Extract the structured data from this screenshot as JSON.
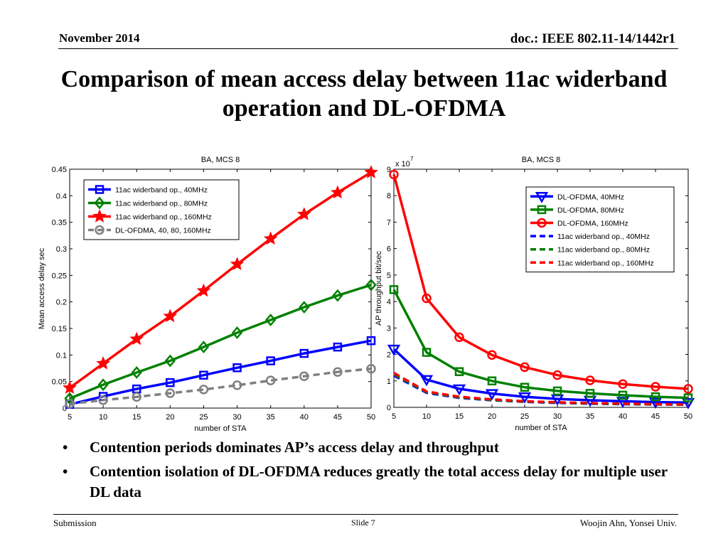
{
  "header": {
    "date": "November 2014",
    "doc": "doc.: IEEE 802.11-14/1442r1"
  },
  "title": "Comparison of mean access delay between 11ac widerband operation and DL-OFDMA",
  "chart_data": [
    {
      "type": "line",
      "title": "BA, MCS 8",
      "xlabel": "number of STA",
      "ylabel": "Mean access delay sec",
      "x": [
        5,
        10,
        15,
        20,
        25,
        30,
        35,
        40,
        45,
        50
      ],
      "xlim": [
        5,
        50
      ],
      "ylim": [
        0,
        0.45
      ],
      "xticks": [
        "5",
        "10",
        "15",
        "20",
        "25",
        "30",
        "35",
        "40",
        "45",
        "50"
      ],
      "yticks": [
        "0",
        "0.05",
        "0.1",
        "0.15",
        "0.2",
        "0.25",
        "0.3",
        "0.35",
        "0.4",
        "0.45"
      ],
      "legend": "top-left",
      "grid": false,
      "series": [
        {
          "name": "11ac widerband op., 40MHz",
          "color": "#0000ff",
          "marker": "square",
          "dash": "solid",
          "values": [
            0.007,
            0.022,
            0.036,
            0.048,
            0.062,
            0.076,
            0.089,
            0.103,
            0.115,
            0.127
          ]
        },
        {
          "name": "11ac widerband op., 80MHz",
          "color": "#008000",
          "marker": "diamond",
          "dash": "solid",
          "values": [
            0.018,
            0.044,
            0.067,
            0.089,
            0.115,
            0.142,
            0.166,
            0.19,
            0.212,
            0.232
          ]
        },
        {
          "name": "11ac widerband op., 160MHz",
          "color": "#ff0000",
          "marker": "star",
          "dash": "solid",
          "values": [
            0.038,
            0.084,
            0.13,
            0.173,
            0.221,
            0.271,
            0.319,
            0.365,
            0.406,
            0.444
          ]
        },
        {
          "name": "DL-OFDMA, 40, 80, 160MHz",
          "color": "#808080",
          "marker": "circle",
          "dash": "dashed",
          "values": [
            0.008,
            0.015,
            0.021,
            0.028,
            0.035,
            0.043,
            0.052,
            0.06,
            0.068,
            0.074
          ]
        }
      ]
    },
    {
      "type": "line",
      "title": "BA, MCS 8",
      "xlabel": "number of STA",
      "ylabel": "AP throughput bit/sec",
      "multiplier": "x 10",
      "multiplier_exp": "7",
      "x": [
        5,
        10,
        15,
        20,
        25,
        30,
        35,
        40,
        45,
        50
      ],
      "xlim": [
        5,
        50
      ],
      "ylim": [
        0,
        9
      ],
      "xticks": [
        "5",
        "10",
        "15",
        "20",
        "25",
        "30",
        "35",
        "40",
        "45",
        "50"
      ],
      "yticks": [
        "0",
        "1",
        "2",
        "3",
        "4",
        "5",
        "6",
        "7",
        "8",
        "9"
      ],
      "legend": "top-right",
      "grid": false,
      "series": [
        {
          "name": "DL-OFDMA, 40MHz",
          "color": "#0000ff",
          "marker": "triangle-down",
          "dash": "solid",
          "values": [
            2.2,
            1.05,
            0.7,
            0.52,
            0.4,
            0.32,
            0.27,
            0.23,
            0.2,
            0.18
          ]
        },
        {
          "name": "DL-OFDMA, 80MHz",
          "color": "#008000",
          "marker": "square",
          "dash": "solid",
          "values": [
            4.45,
            2.08,
            1.35,
            1.0,
            0.76,
            0.62,
            0.53,
            0.46,
            0.4,
            0.36
          ]
        },
        {
          "name": "DL-OFDMA, 160MHz",
          "color": "#ff0000",
          "marker": "circle",
          "dash": "solid",
          "values": [
            8.8,
            4.12,
            2.65,
            1.98,
            1.52,
            1.22,
            1.02,
            0.88,
            0.78,
            0.7
          ]
        },
        {
          "name": "11ac widerband op., 40MHz",
          "color": "#0000ff",
          "marker": "none",
          "dash": "dashed",
          "values": [
            1.2,
            0.55,
            0.36,
            0.27,
            0.21,
            0.17,
            0.14,
            0.12,
            0.11,
            0.1
          ]
        },
        {
          "name": "11ac widerband op., 80MHz",
          "color": "#008000",
          "marker": "none",
          "dash": "dashed",
          "values": [
            1.25,
            0.58,
            0.38,
            0.28,
            0.22,
            0.18,
            0.15,
            0.13,
            0.115,
            0.105
          ]
        },
        {
          "name": "11ac widerband op., 160MHz",
          "color": "#ff0000",
          "marker": "none",
          "dash": "dashed",
          "values": [
            1.3,
            0.6,
            0.4,
            0.3,
            0.23,
            0.19,
            0.16,
            0.14,
            0.12,
            0.11
          ]
        }
      ]
    }
  ],
  "bullets": [
    "Contention periods dominates AP’s access delay and throughput",
    "Contention isolation of DL-OFDMA reduces greatly the total access delay for multiple user DL data"
  ],
  "bullet_symbol": "•",
  "footer": {
    "left": "Submission",
    "center": "Slide 7",
    "right": "Woojin Ahn, Yonsei Univ."
  }
}
